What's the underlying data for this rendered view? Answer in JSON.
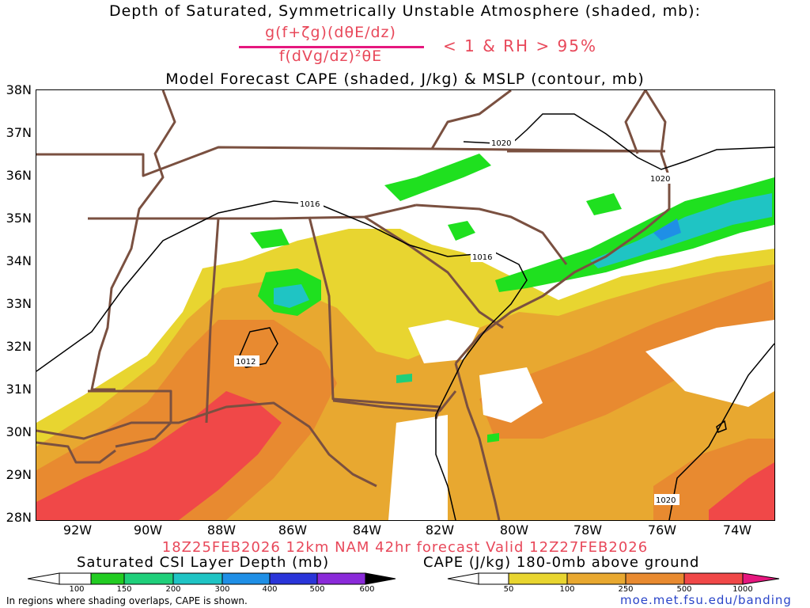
{
  "header": {
    "title1": "Depth of Saturated, Symmetrically Unstable Atmosphere (shaded, mb):",
    "fraction_numerator": "g(f+ζg)(dθE/dz)",
    "fraction_denominator": "f(dVg/dz)²θE",
    "condition": "< 1 & RH > 95%",
    "title2": "Model Forecast CAPE (shaded, J/kg) & MSLP (contour, mb)"
  },
  "map": {
    "lat_labels": [
      "38N",
      "37N",
      "36N",
      "35N",
      "34N",
      "33N",
      "32N",
      "31N",
      "30N",
      "29N",
      "28N"
    ],
    "lon_labels": [
      "92W",
      "90W",
      "88W",
      "86W",
      "84W",
      "82W",
      "80W",
      "78W",
      "76W",
      "74W"
    ],
    "isobar_labels": [
      "1020",
      "1020",
      "1016",
      "1016",
      "1012",
      "1020"
    ],
    "colors": {
      "cape_50": "#e8d530",
      "cape_100": "#e8a830",
      "cape_250": "#e88a30",
      "cape_500": "#f04848",
      "csi_100": "#1fe01f",
      "csi_150": "#1fcf7a",
      "csi_200": "#1fc4c4",
      "csi_300": "#1f8fe6",
      "borders": "#7a5040"
    }
  },
  "footer": {
    "valid_line": "18Z25FEB2026 12km NAM 42hr forecast Valid 12Z27FEB2026",
    "csi_title": "Saturated CSI Layer Depth (mb)",
    "cape_title": "CAPE (J/kg) 180-0mb above ground",
    "csi_ticks": [
      "100",
      "150",
      "200",
      "300",
      "400",
      "500",
      "600"
    ],
    "cape_ticks": [
      "50",
      "100",
      "250",
      "500",
      "1000"
    ],
    "note": "In regions where shading overlaps, CAPE is shown.",
    "credit": "moe.met.fsu.edu/banding"
  }
}
